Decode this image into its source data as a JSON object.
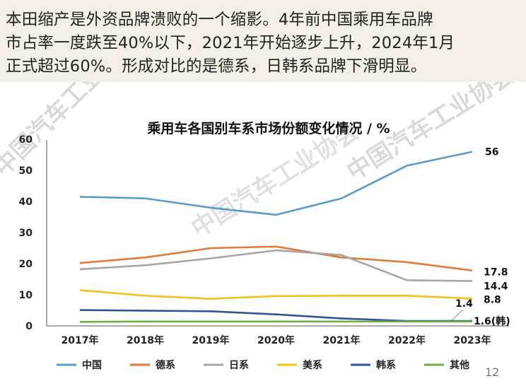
{
  "caption": {
    "lines": [
      "本田缩产是外资品牌溃败的一个缩影。4年前中国乘用车品牌",
      "市占率一度跌至40%以下，2021年开始逐步上升，2024年1月",
      "正式超过60%。形成对比的是德系，日韩系品牌下滑明显。"
    ]
  },
  "page_number": "12",
  "chart_data": {
    "type": "line",
    "title": "乘用车各国别车系市场份额变化情况 / %",
    "categories": [
      "2017年",
      "2018年",
      "2019年",
      "2020年",
      "2021年",
      "2022年",
      "2023年"
    ],
    "ylim": [
      0,
      60
    ],
    "yticks": [
      0,
      10,
      20,
      30,
      40,
      50,
      60
    ],
    "grid": false,
    "legend_position": "bottom",
    "series": [
      {
        "name": "中国",
        "color": "#5b9bc8",
        "values": [
          41.5,
          41,
          38,
          35.7,
          41,
          51.5,
          56
        ]
      },
      {
        "name": "德系",
        "color": "#e07b39",
        "values": [
          20.2,
          22,
          25,
          25.5,
          22,
          20.5,
          17.8
        ]
      },
      {
        "name": "日系",
        "color": "#a6a6a6",
        "values": [
          18.2,
          19.5,
          21.7,
          24.3,
          22.8,
          14.7,
          14.4
        ]
      },
      {
        "name": "美系",
        "color": "#f2c318",
        "values": [
          11.5,
          9.7,
          8.7,
          9.6,
          9.7,
          9.7,
          8.8
        ]
      },
      {
        "name": "韩系",
        "color": "#2f5597",
        "values": [
          5.1,
          4.9,
          4.7,
          3.7,
          2.4,
          1.6,
          1.6
        ]
      },
      {
        "name": "其他",
        "color": "#70ad47",
        "values": [
          1.3,
          1.4,
          1.4,
          1.4,
          1.4,
          1.4,
          1.4
        ]
      }
    ],
    "end_labels": [
      {
        "series": "中国",
        "text": "56"
      },
      {
        "series": "德系",
        "text": "17.8"
      },
      {
        "series": "日系",
        "text": "14.4"
      },
      {
        "series": "美系",
        "text": "8.8"
      },
      {
        "series": "其他",
        "text": "1.4"
      },
      {
        "series": "韩系",
        "text": "1.6(韩)"
      }
    ],
    "watermark": "中国汽车工业协会"
  }
}
